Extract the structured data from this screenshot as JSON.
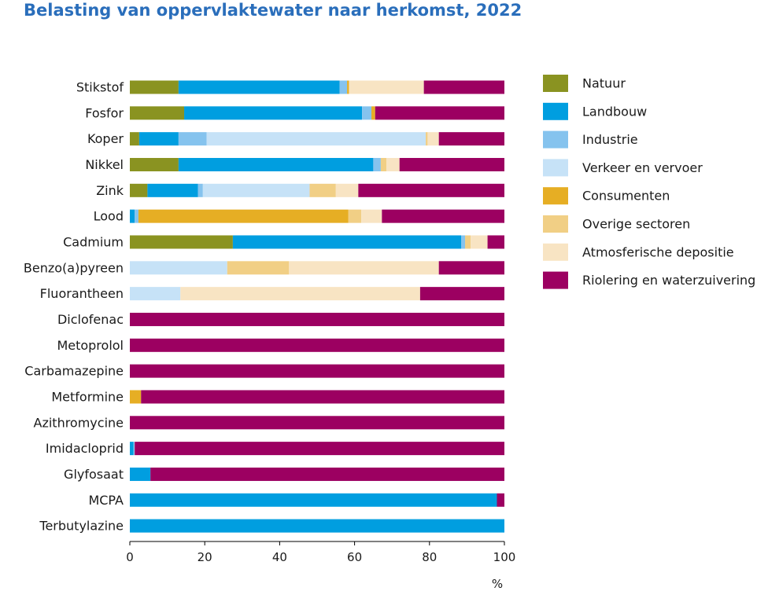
{
  "chart_data": {
    "type": "bar",
    "orientation": "horizontal",
    "stacked": true,
    "title": "Belasting van oppervlaktewater naar herkomst, 2022",
    "xlabel": "%",
    "ylabel": "",
    "xlim": [
      0,
      100
    ],
    "xticks": [
      0,
      20,
      40,
      60,
      80,
      100
    ],
    "legend_position": "right",
    "grid": false,
    "categories": [
      "Stikstof",
      "Fosfor",
      "Koper",
      "Nikkel",
      "Zink",
      "Lood",
      "Cadmium",
      "Benzo(a)pyreen",
      "Fluorantheen",
      "Diclofenac",
      "Metoprolol",
      "Carbamazepine",
      "Metformine",
      "Azithromycine",
      "Imidacloprid",
      "Glyfosaat",
      "MCPA",
      "Terbutylazine"
    ],
    "series": [
      {
        "name": "Natuur",
        "color": "#8a9321",
        "values": [
          13,
          14.5,
          2.5,
          13,
          4.7,
          0,
          27.5,
          0,
          0,
          0,
          0,
          0,
          0,
          0,
          0,
          0,
          0,
          0
        ]
      },
      {
        "name": "Landbouw",
        "color": "#009ee0",
        "values": [
          43,
          47.5,
          10.5,
          52,
          13.5,
          1.3,
          61,
          0,
          0,
          0,
          0,
          0,
          0,
          0,
          1,
          5.5,
          98,
          100
        ]
      },
      {
        "name": "Industrie",
        "color": "#85c3ee",
        "values": [
          2,
          2.5,
          7.5,
          2,
          1.3,
          1,
          1,
          0,
          0,
          0,
          0,
          0,
          0,
          0,
          0.3,
          0,
          0,
          0
        ]
      },
      {
        "name": "Verkeer en vervoer",
        "color": "#c6e2f7",
        "values": [
          0,
          0,
          58.5,
          0,
          28.5,
          0,
          0,
          26,
          13.5,
          0,
          0,
          0,
          0,
          0,
          0,
          0,
          0,
          0
        ]
      },
      {
        "name": "Consumenten",
        "color": "#e6ae24",
        "values": [
          0.5,
          1,
          0,
          0,
          0,
          56,
          0,
          0,
          0,
          0,
          0,
          0,
          3,
          0,
          0,
          0,
          0,
          0
        ]
      },
      {
        "name": "Overige sectoren",
        "color": "#f1cf85",
        "values": [
          0,
          0,
          0.5,
          1.5,
          7,
          3.5,
          1.5,
          16.5,
          0,
          0,
          0,
          0,
          0,
          0,
          0,
          0,
          0,
          0
        ]
      },
      {
        "name": "Atmosferische depositie",
        "color": "#f8e4c3",
        "values": [
          20,
          0,
          3,
          3.5,
          6,
          5.5,
          4.5,
          40,
          64,
          0,
          0,
          0,
          0,
          0,
          0,
          0,
          0,
          0
        ]
      },
      {
        "name": "Riolering en waterzuivering",
        "color": "#9c0061",
        "values": [
          21.5,
          34.5,
          17.5,
          28,
          39,
          32.7,
          4.5,
          17.5,
          22.5,
          100,
          100,
          100,
          97,
          100,
          98.7,
          94.5,
          2,
          0
        ]
      }
    ]
  }
}
